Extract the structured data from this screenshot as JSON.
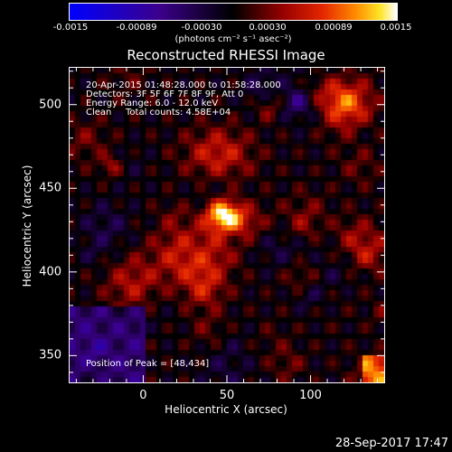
{
  "chart_data": {
    "type": "heatmap",
    "title": "Reconstructed RHESSI Image",
    "xlabel": "Heliocentric X (arcsec)",
    "ylabel": "Heliocentric Y (arcsec)",
    "xlim": [
      -44,
      144
    ],
    "ylim": [
      334,
      522
    ],
    "x_ticks": [
      "0",
      "50",
      "100"
    ],
    "x_tick_values": [
      0,
      50,
      100
    ],
    "y_ticks": [
      "350",
      "400",
      "450",
      "500"
    ],
    "y_tick_values": [
      350,
      400,
      450,
      500
    ],
    "colorbar": {
      "min": -0.0015,
      "max": 0.0015,
      "ticks": [
        "-0.0015",
        "-0.00089",
        "-0.00030",
        "0.00030",
        "0.00089",
        "0.0015"
      ],
      "tick_values": [
        -0.0015,
        -0.00089,
        -0.0003,
        0.0003,
        0.00089,
        0.0015
      ],
      "unit_label": "(photons cm⁻² s⁻¹ asec⁻²)"
    },
    "peak": {
      "x": 48,
      "y": 434,
      "value": 0.0015
    },
    "annotations": {
      "time_range": "20-Apr-2015 01:48:28.000 to 01:58:28.000",
      "detectors": "Detectors: 3F 5F 6F 7F 8F 9F, Att 0",
      "energy": "Energy Range: 6.0 - 12.0 keV",
      "clean_label": "Clean",
      "total_counts": "Total counts: 4.58E+04",
      "peak_position": "Position of Peak = [48,434]"
    },
    "footer_timestamp": "28-Sep-2017 17:47",
    "colors": {
      "low": "#0000ff",
      "mid": "#000000",
      "high_red": "#c00000",
      "high_orange": "#ff8c00",
      "peak": "#ffffff"
    }
  }
}
